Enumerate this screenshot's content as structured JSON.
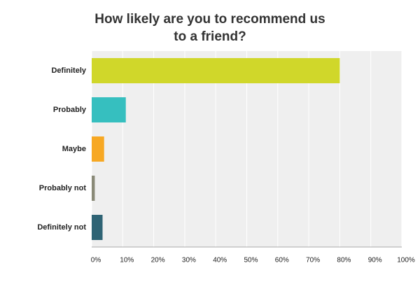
{
  "chart_data": {
    "type": "hbar",
    "title_lines": [
      "How likely are you to recommend us",
      "to a friend?"
    ],
    "categories": [
      "Definitely",
      "Probably",
      "Maybe",
      "Probably not",
      "Definitely not"
    ],
    "values": [
      80,
      11,
      4,
      1,
      3.5
    ],
    "colors": [
      "#d0d72a",
      "#36bfbf",
      "#f7a823",
      "#8a8a78",
      "#2f6475"
    ],
    "xlim": [
      0,
      100
    ],
    "xticks": [
      {
        "value": 0,
        "label": "0%"
      },
      {
        "value": 10,
        "label": "10%"
      },
      {
        "value": 20,
        "label": "20%"
      },
      {
        "value": 30,
        "label": "30%"
      },
      {
        "value": 40,
        "label": "40%"
      },
      {
        "value": 50,
        "label": "50%"
      },
      {
        "value": 60,
        "label": "60%"
      },
      {
        "value": 70,
        "label": "70%"
      },
      {
        "value": 80,
        "label": "80%"
      },
      {
        "value": 90,
        "label": "90%"
      },
      {
        "value": 100,
        "label": "100%"
      }
    ],
    "grid": true
  }
}
